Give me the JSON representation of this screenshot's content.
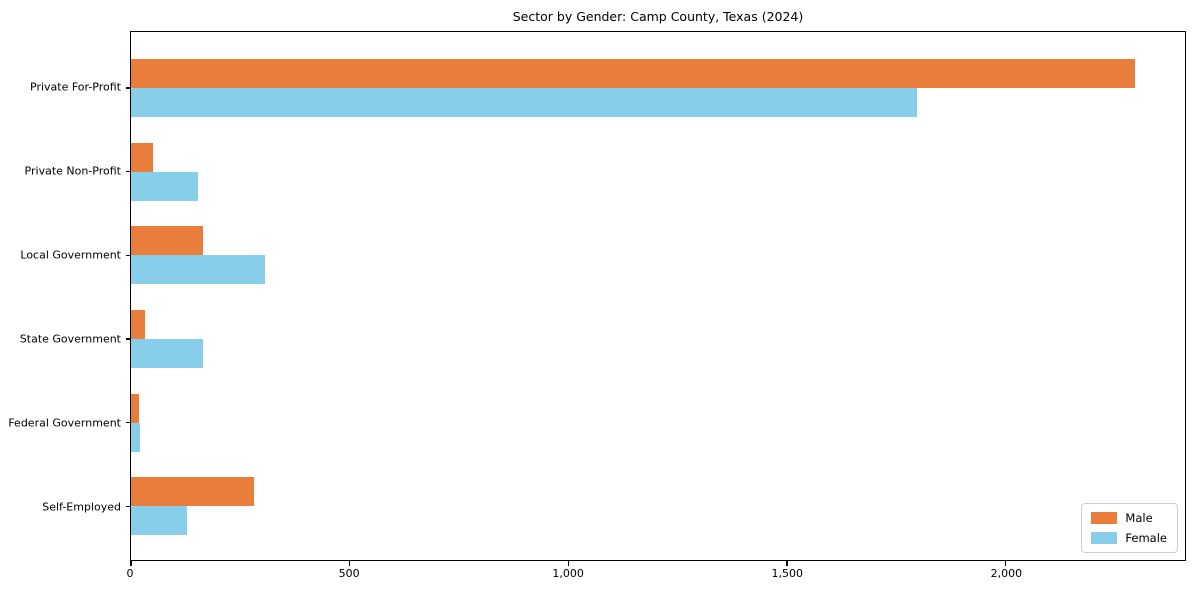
{
  "title": "Sector by Gender: Camp County, Texas (2024)",
  "chart_data": {
    "type": "bar",
    "orientation": "horizontal",
    "title": "Sector by Gender: Camp County, Texas (2024)",
    "categories": [
      "Private For-Profit",
      "Private Non-Profit",
      "Local Government",
      "State Government",
      "Federal Government",
      "Self-Employed"
    ],
    "series": [
      {
        "name": "Male",
        "color": "#e87d3c",
        "values": [
          2295,
          51,
          164,
          32,
          18,
          281
        ]
      },
      {
        "name": "Female",
        "color": "#87ceeb",
        "values": [
          1797,
          154,
          307,
          164,
          20,
          128
        ]
      }
    ],
    "xlabel": "",
    "ylabel": "",
    "xlim": [
      0,
      2410
    ],
    "x_ticks": [
      {
        "value": 0,
        "label": "0"
      },
      {
        "value": 500,
        "label": "500"
      },
      {
        "value": 1000,
        "label": "1,000"
      },
      {
        "value": 1500,
        "label": "1,500"
      },
      {
        "value": 2000,
        "label": "2,000"
      }
    ],
    "grid": false,
    "legend_position": "lower right"
  },
  "colors": {
    "axis": "#000000",
    "legend_border": "#cccccc",
    "background": "#ffffff"
  }
}
